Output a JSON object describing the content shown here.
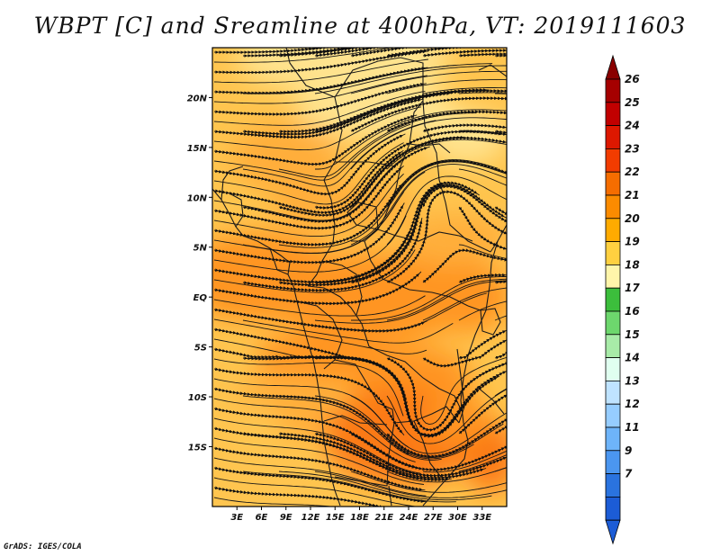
{
  "title": "WBPT [C] and Sreamline at 400hPa, VT: 2019111603",
  "credit": "GrADS: IGES/COLA",
  "map": {
    "lon_range": [
      0,
      36
    ],
    "lat_range": [
      -21,
      25
    ],
    "lon_ticks": [
      {
        "value": 3,
        "label": "3E"
      },
      {
        "value": 6,
        "label": "6E"
      },
      {
        "value": 9,
        "label": "9E"
      },
      {
        "value": 12,
        "label": "12E"
      },
      {
        "value": 15,
        "label": "15E"
      },
      {
        "value": 18,
        "label": "18E"
      },
      {
        "value": 21,
        "label": "21E"
      },
      {
        "value": 24,
        "label": "24E"
      },
      {
        "value": 27,
        "label": "27E"
      },
      {
        "value": 30,
        "label": "30E"
      },
      {
        "value": 33,
        "label": "33E"
      }
    ],
    "lat_ticks": [
      {
        "value": 20,
        "label": "20N"
      },
      {
        "value": 15,
        "label": "15N"
      },
      {
        "value": 10,
        "label": "10N"
      },
      {
        "value": 5,
        "label": "5N"
      },
      {
        "value": 0,
        "label": "EQ"
      },
      {
        "value": -5,
        "label": "5S"
      },
      {
        "value": -10,
        "label": "10S"
      },
      {
        "value": -15,
        "label": "15S"
      }
    ],
    "field_colors": {
      "c19": "#ffe38e",
      "c20": "#ffc54f",
      "c21": "#ffae3a",
      "c22": "#ff9520",
      "c23": "#fb7a14"
    },
    "warm_areas": [
      {
        "name": "west-equatorial-core",
        "lon": 7,
        "lat": 1,
        "wbpt": 22
      },
      {
        "name": "congo-core",
        "lon": 20,
        "lat": -1,
        "wbpt": 22
      },
      {
        "name": "southern-africa-core",
        "lon": 23,
        "lat": -15,
        "wbpt": 23
      },
      {
        "name": "east-coast-core",
        "lon": 34,
        "lat": -16,
        "wbpt": 23
      }
    ],
    "cool_areas": [
      {
        "name": "sahara-north",
        "lon": 20,
        "lat": 21,
        "wbpt": 19
      },
      {
        "name": "sudan-east",
        "lon": 30,
        "lat": 15,
        "wbpt": 19
      }
    ],
    "vortex": {
      "name": "cyclonic-eddy",
      "lon": 28,
      "lat": 10
    },
    "anticyclone": {
      "name": "southern-anticyclone",
      "lon": 26,
      "lat": -14
    }
  },
  "colorbar": {
    "levels": [
      "26",
      "25",
      "24",
      "23",
      "22",
      "21",
      "20",
      "19",
      "18",
      "17",
      "16",
      "15",
      "14",
      "13",
      "12",
      "11",
      "9",
      "7"
    ],
    "colors": [
      "#a50000",
      "#c10000",
      "#dd1800",
      "#f23c00",
      "#f56d00",
      "#fb8b00",
      "#ffab00",
      "#ffd040",
      "#fff5aa",
      "#3cbe3c",
      "#6dd76d",
      "#a8eba8",
      "#e0fff0",
      "#bfe3ff",
      "#96cdff",
      "#6eb4fa",
      "#4b96f0",
      "#2a73df",
      "#1c5cd6"
    ],
    "top_color": "#8a0000",
    "bottom_color": "#1c5cd6"
  }
}
